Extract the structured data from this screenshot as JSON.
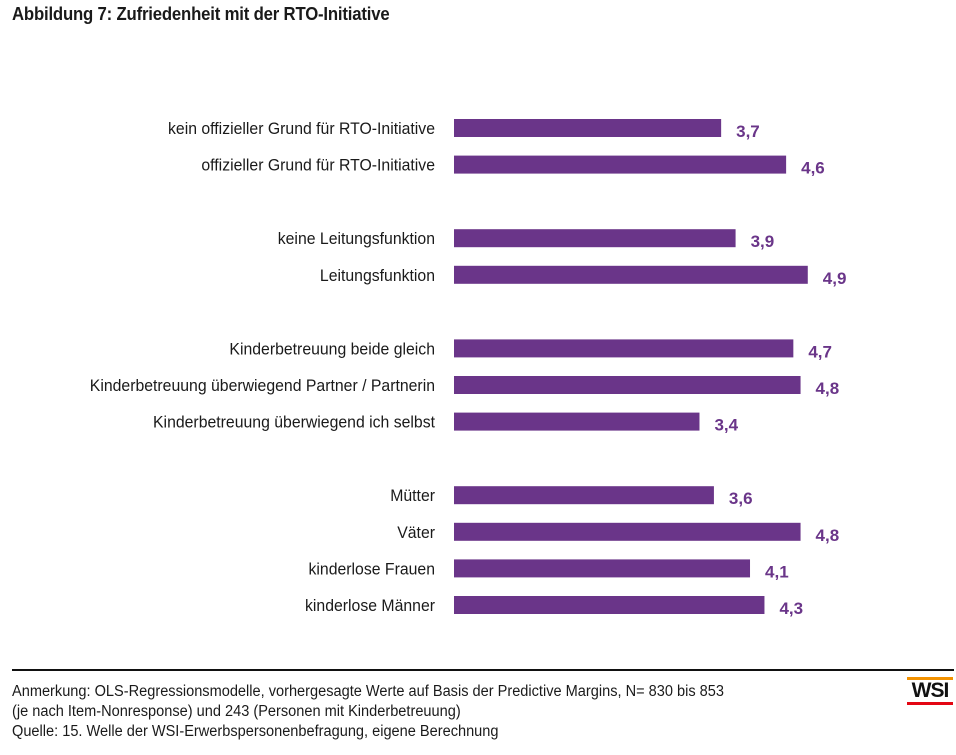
{
  "title": "Abbildung 7: Zufriedenheit mit der RTO-Initiative",
  "chart_data": {
    "type": "bar",
    "orientation": "horizontal",
    "title": "Abbildung 7: Zufriedenheit mit der RTO-Initiative",
    "xlabel": "",
    "ylabel": "",
    "xlim": [
      0,
      5
    ],
    "grid": false,
    "legend": "none",
    "bar_color": "#6a3589",
    "groups": [
      {
        "categories": [
          "kein offizieller Grund für RTO-Initiative",
          "offizieller Grund für RTO-Initiative"
        ],
        "values": [
          3.7,
          4.6
        ],
        "labels": [
          "3,7",
          "4,6"
        ]
      },
      {
        "categories": [
          "keine Leitungsfunktion",
          "Leitungsfunktion"
        ],
        "values": [
          3.9,
          4.9
        ],
        "labels": [
          "3,9",
          "4,9"
        ]
      },
      {
        "categories": [
          "Kinderbetreuung beide gleich",
          "Kinderbetreuung  überwiegend Partner / Partnerin",
          "Kinderbetreuung überwiegend ich selbst"
        ],
        "values": [
          4.7,
          4.8,
          3.4
        ],
        "labels": [
          "4,7",
          "4,8",
          "3,4"
        ]
      },
      {
        "categories": [
          "Mütter",
          "Väter",
          "kinderlose Frauen",
          "kinderlose Männer"
        ],
        "values": [
          3.6,
          4.8,
          4.1,
          4.3
        ],
        "labels": [
          "3,6",
          "4,8",
          "4,1",
          "4,3"
        ]
      }
    ]
  },
  "notes": {
    "line1": "Anmerkung: OLS-Regressionsmodelle, vorhergesagte Werte auf Basis der Predictive Margins, N= 830 bis 853",
    "line2": "(je nach Item-Nonresponse) und 243 (Personen mit Kinderbetreuung)",
    "line3": "Quelle: 15. Welle der WSI-Erwerbspersonenbefragung, eigene Berechnung"
  },
  "logo": {
    "text": "WSI",
    "top_color": "#f39200",
    "bottom_color": "#e30613"
  }
}
